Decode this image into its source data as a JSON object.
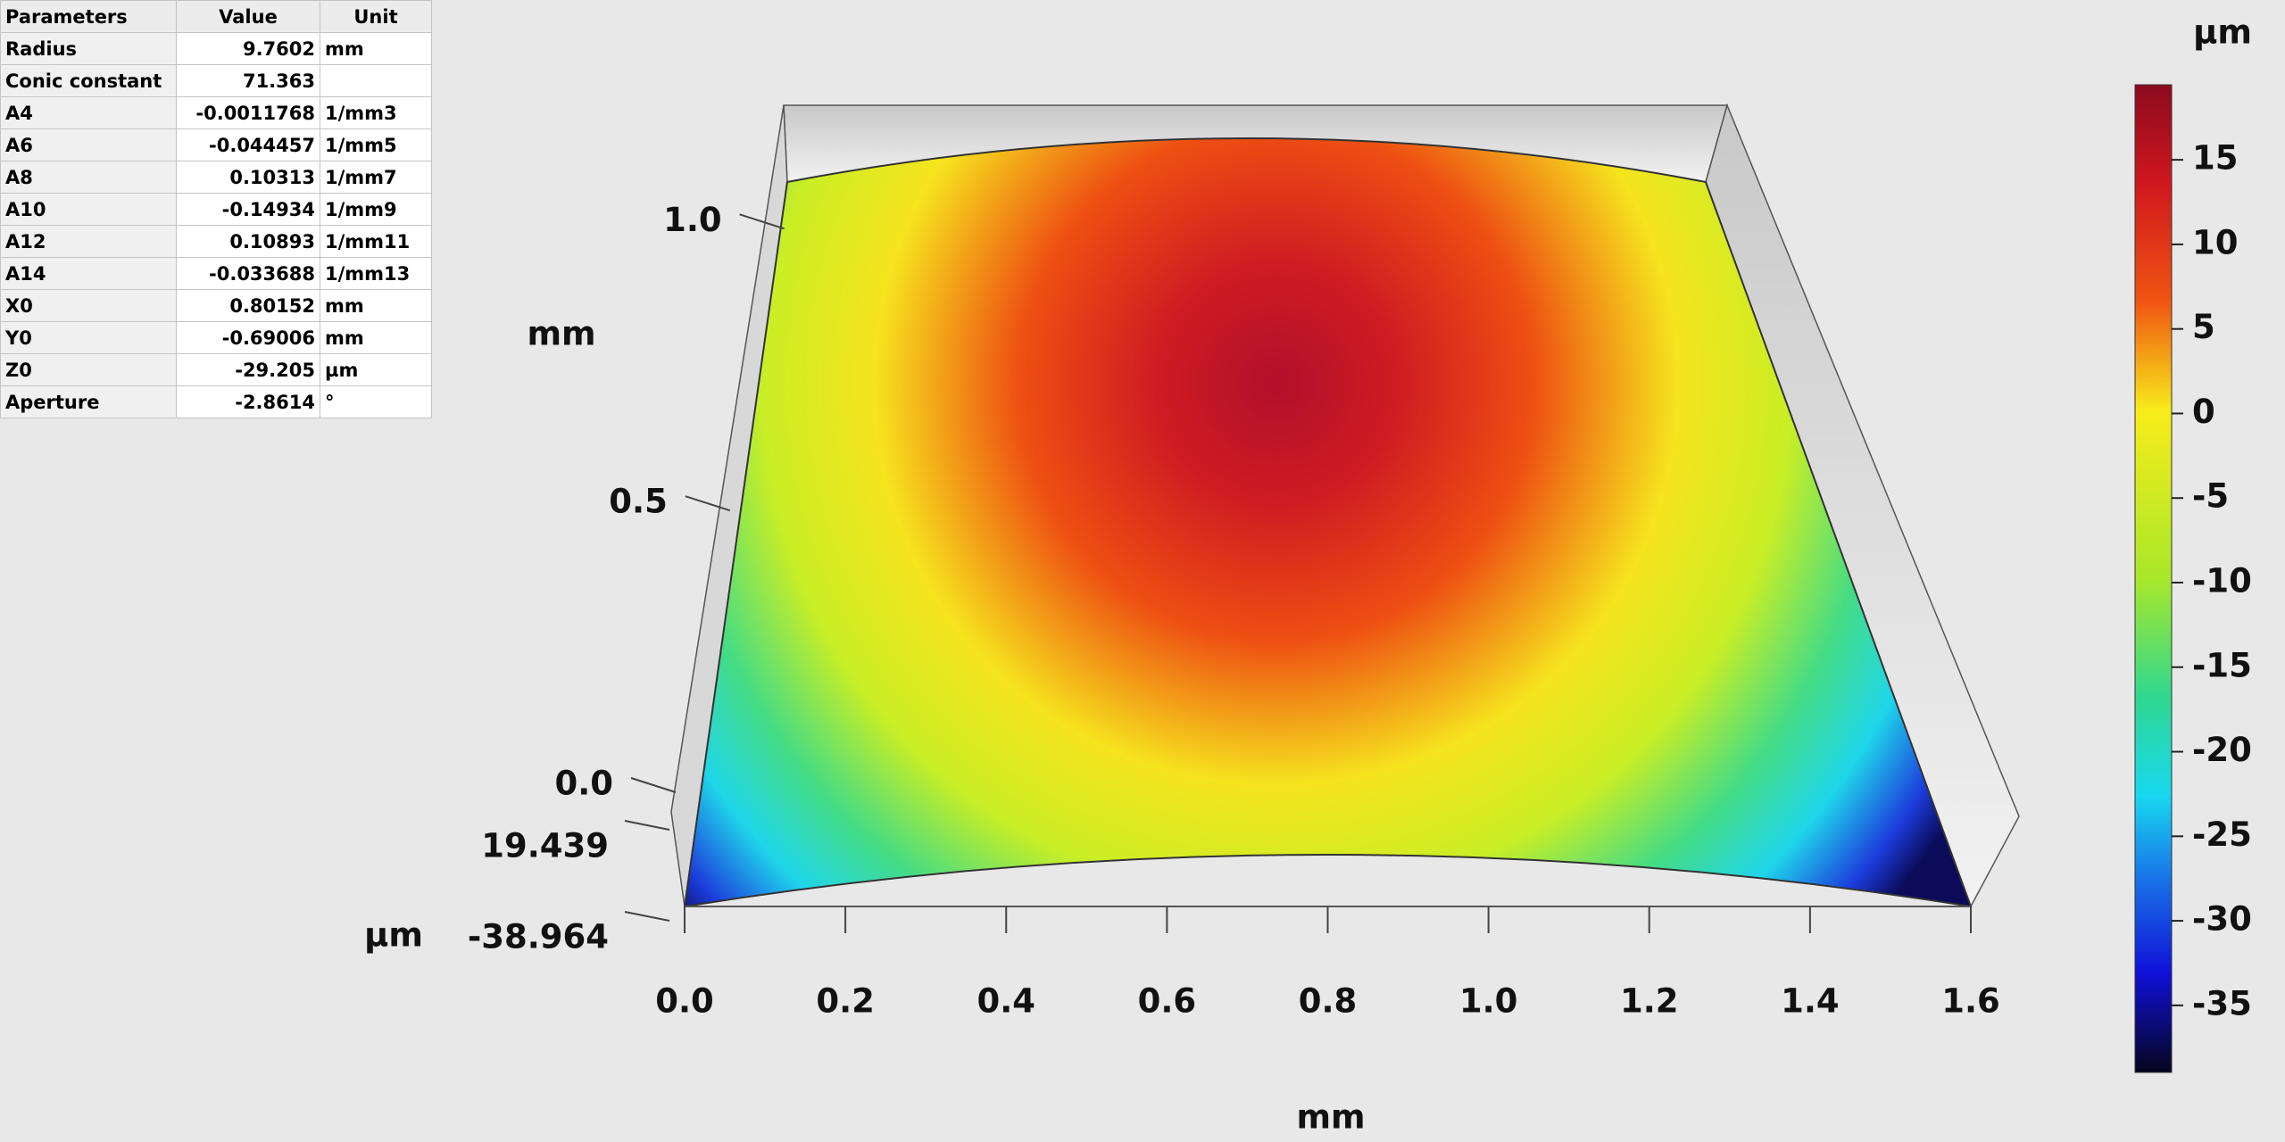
{
  "table": {
    "header": [
      "Parameters",
      "Value",
      "Unit"
    ],
    "rows": [
      {
        "name": "Radius",
        "value": "9.7602",
        "unit": "mm"
      },
      {
        "name": "Conic constant",
        "value": "71.363"
      },
      {
        "name": "A4",
        "value": "-0.0011768",
        "unit": "1/mm3"
      },
      {
        "name": "A6",
        "value": "-0.044457",
        "unit": "1/mm5"
      },
      {
        "name": "A8",
        "value": "0.10313",
        "unit": "1/mm7"
      },
      {
        "name": "A10",
        "value": "-0.14934",
        "unit": "1/mm9"
      },
      {
        "name": "A12",
        "value": "0.10893",
        "unit": "1/mm11"
      },
      {
        "name": "A14",
        "value": "-0.033688",
        "unit": "1/mm13"
      },
      {
        "name": "X0",
        "value": "0.80152",
        "unit": "mm"
      },
      {
        "name": "Y0",
        "value": "-0.69006",
        "unit": "mm"
      },
      {
        "name": "Z0",
        "value": "-29.205",
        "unit": "µm"
      },
      {
        "name": "Aperture",
        "value": "-2.8614",
        "unit": "°"
      }
    ]
  },
  "chart_data": {
    "type": "surface",
    "xlabel": "mm",
    "ylabel": "mm",
    "zlabel": "µm",
    "colorbar_label": "µm",
    "xlim": [
      0,
      1.6
    ],
    "xticks": [
      {
        "value": 0,
        "label": "0.0"
      },
      0.2,
      0.4,
      0.6,
      0.8,
      {
        "value": 1,
        "label": "1.0"
      },
      1.2,
      1.4,
      1.6
    ],
    "ylim": [
      0,
      1.2
    ],
    "yticks": [
      {
        "value": 0,
        "label": "0.0"
      },
      0.5,
      {
        "value": 1,
        "label": "1.0"
      }
    ],
    "zlim": [
      -38.964,
      19.439
    ],
    "zticks": [
      19.439,
      -38.964
    ],
    "colorbar_ticks": [
      15,
      10,
      5,
      0,
      -5,
      -10,
      -15,
      -20,
      -25,
      -30,
      -35
    ]
  }
}
